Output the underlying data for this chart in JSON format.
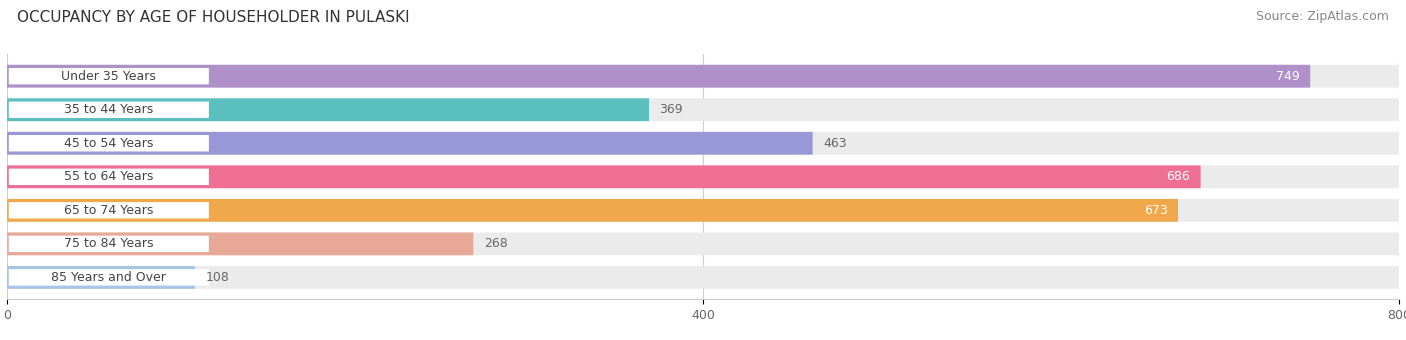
{
  "title": "OCCUPANCY BY AGE OF HOUSEHOLDER IN PULASKI",
  "source": "Source: ZipAtlas.com",
  "categories": [
    "Under 35 Years",
    "35 to 44 Years",
    "45 to 54 Years",
    "55 to 64 Years",
    "65 to 74 Years",
    "75 to 84 Years",
    "85 Years and Over"
  ],
  "values": [
    749,
    369,
    463,
    686,
    673,
    268,
    108
  ],
  "bar_colors": [
    "#b090c8",
    "#5bbfbf",
    "#9898d8",
    "#f07095",
    "#f0a84a",
    "#e8a898",
    "#a8c4e8"
  ],
  "bar_bg_color": "#ebebeb",
  "value_label_color_inside": "#ffffff",
  "value_label_color_outside": "#666666",
  "xlim": [
    0,
    800
  ],
  "xticks": [
    0,
    400,
    800
  ],
  "title_fontsize": 11,
  "source_fontsize": 9,
  "label_fontsize": 9,
  "value_fontsize": 9,
  "bar_height": 0.68,
  "bg_color": "#ffffff",
  "grid_color": "#cccccc",
  "inside_threshold": 550
}
